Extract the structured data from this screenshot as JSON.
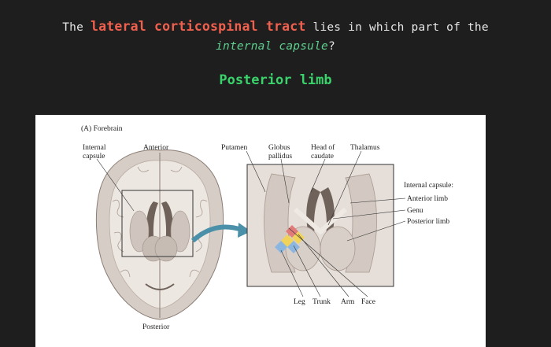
{
  "question": {
    "prefix": "The ",
    "highlight": "lateral corticospinal tract",
    "middle": " lies in which part of the",
    "italic": "internal capsule",
    "suffix": "?"
  },
  "answer": "Posterior limb",
  "figure": {
    "panel_title": "(A) Forebrain",
    "labels": {
      "internal_capsule": [
        "Internal",
        "capsule"
      ],
      "anterior": "Anterior",
      "posterior": "Posterior",
      "putamen": "Putamen",
      "globus_pallidus": [
        "Globus",
        "pallidus"
      ],
      "head_of_caudate": [
        "Head of",
        "caudate"
      ],
      "thalamus": "Thalamus",
      "ic_heading": "Internal capsule:",
      "anterior_limb": "Anterior limb",
      "genu": "Genu",
      "posterior_limb": "Posterior limb",
      "leg": "Leg",
      "trunk": "Trunk",
      "arm": "Arm",
      "face": "Face"
    }
  },
  "colors": {
    "background": "#1e1e1e",
    "highlight": "#f0604e",
    "italic": "#5ecf8e",
    "answer": "#3ad36b",
    "arrow": "#4a90a8",
    "tract_blue": "#8ab6e0",
    "tract_yellow": "#f2d35a",
    "tract_red": "#e27a7a"
  }
}
